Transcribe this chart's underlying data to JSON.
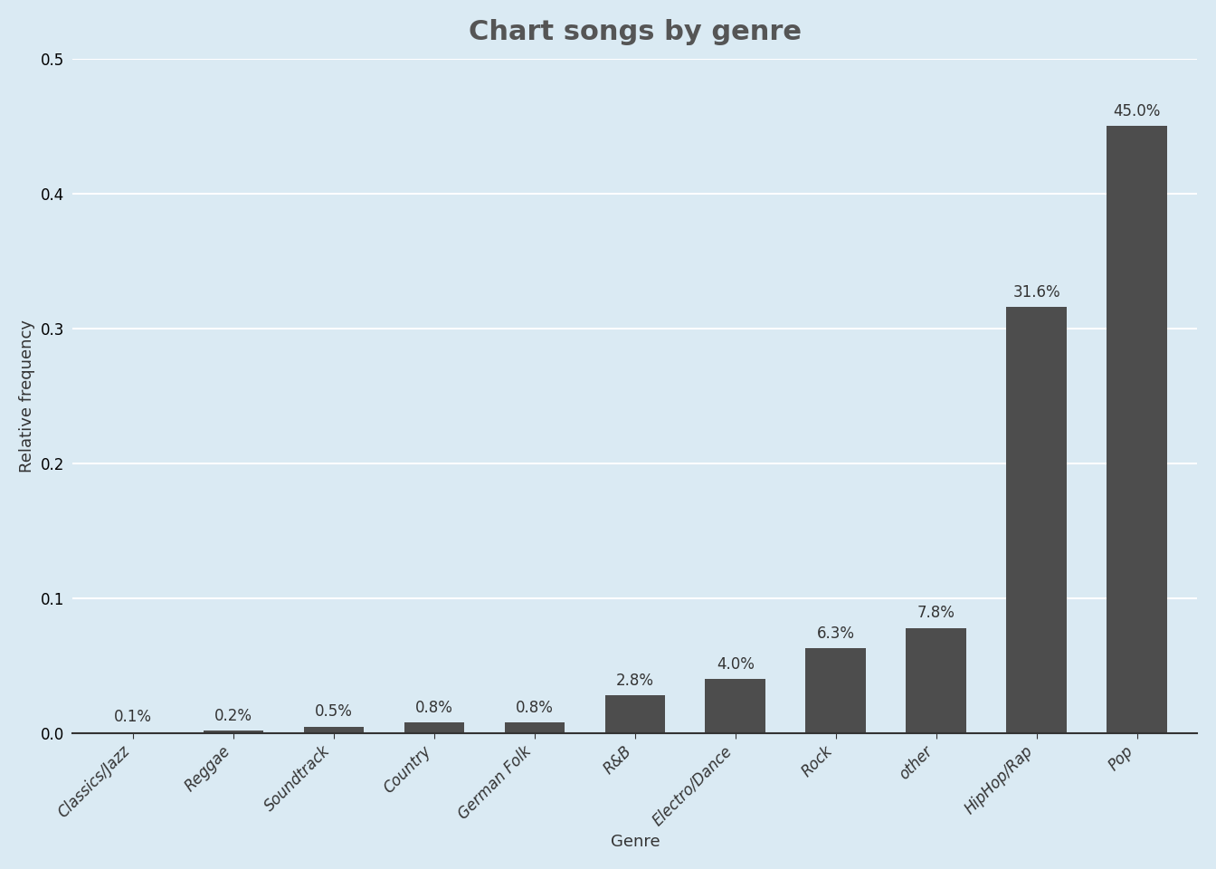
{
  "title": "Chart songs by genre",
  "xlabel": "Genre",
  "ylabel": "Relative frequency",
  "categories": [
    "Classics/Jazz",
    "Reggae",
    "Soundtrack",
    "Country",
    "German Folk",
    "R&B",
    "Electro/Dance",
    "Rock",
    "other",
    "HipHop/Rap",
    "Pop"
  ],
  "values": [
    0.001,
    0.002,
    0.005,
    0.008,
    0.008,
    0.028,
    0.04,
    0.063,
    0.078,
    0.316,
    0.45
  ],
  "labels": [
    "0.1%",
    "0.2%",
    "0.5%",
    "0.8%",
    "0.8%",
    "2.8%",
    "4.0%",
    "6.3%",
    "7.8%",
    "31.6%",
    "45.0%"
  ],
  "bar_color": "#4d4d4d",
  "background_color": "#daeaf3",
  "title_color": "#555555",
  "label_color": "#333333",
  "ylim": [
    0,
    0.5
  ],
  "yticks": [
    0.0,
    0.1,
    0.2,
    0.3,
    0.4,
    0.5
  ],
  "title_fontsize": 22,
  "axis_label_fontsize": 13,
  "tick_label_fontsize": 12,
  "bar_label_fontsize": 12
}
